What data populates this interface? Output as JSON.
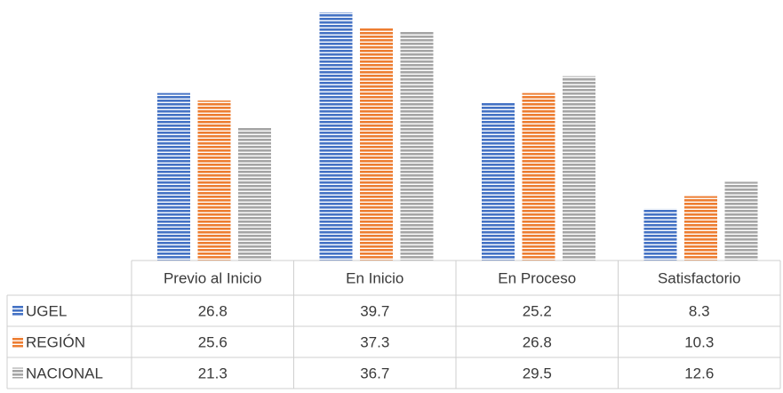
{
  "chart_data": {
    "type": "bar",
    "categories": [
      "Previo al Inicio",
      "En Inicio",
      "En Proceso",
      "Satisfactorio"
    ],
    "series": [
      {
        "name": "UGEL",
        "values": [
          26.8,
          39.7,
          25.2,
          8.3
        ],
        "color": "#4472C4"
      },
      {
        "name": "REGIÓN",
        "values": [
          25.6,
          37.3,
          26.8,
          10.3
        ],
        "color": "#ED7D31"
      },
      {
        "name": "NACIONAL",
        "values": [
          21.3,
          36.7,
          29.5,
          12.6
        ],
        "color": "#A5A5A5"
      }
    ],
    "ylim": [
      0,
      40
    ],
    "legend": "data-table",
    "grid": false,
    "bar_pattern": "horizontal-stripes"
  }
}
